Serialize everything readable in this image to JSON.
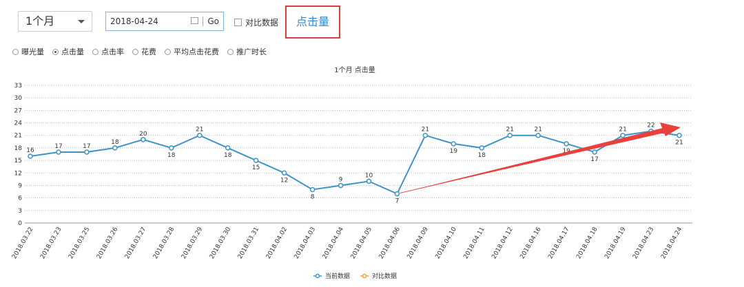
{
  "controls": {
    "period": "1个月",
    "date": "2018-04-24",
    "go": "Go",
    "compare": "对比数据",
    "metric": "点击量",
    "metrics": [
      "曝光量",
      "点击量",
      "点击率",
      "花费",
      "平均点击花费",
      "推广时长"
    ],
    "selected_metric": 1
  },
  "chart_data": {
    "type": "line",
    "title": "1个月  点击量",
    "categories": [
      "2018.03.22",
      "2018.03.23",
      "2018.03.25",
      "2018.03.26",
      "2018.03.27",
      "2018.03.28",
      "2018.03.29",
      "2018.03.30",
      "2018.03.31",
      "2018.04.02",
      "2018.04.03",
      "2018.04.04",
      "2018.04.05",
      "2018.04.06",
      "2018.04.09",
      "2018.04.10",
      "2018.04.11",
      "2018.04.12",
      "2018.04.16",
      "2018.04.17",
      "2018.04.18",
      "2018.04.19",
      "2018.04.23",
      "2018.04.24"
    ],
    "series": [
      {
        "name": "当前数据",
        "color": "#3a94c9",
        "values": [
          16,
          17,
          17,
          18,
          20,
          18,
          21,
          18,
          15,
          12,
          8,
          9,
          10,
          7,
          21,
          19,
          18,
          21,
          21,
          19,
          17,
          21,
          22,
          21
        ]
      }
    ],
    "comparison_series": {
      "name": "对比数据",
      "color": "#f0a030"
    },
    "ylim": [
      0,
      33
    ],
    "yticks": [
      0,
      3,
      6,
      9,
      12,
      15,
      18,
      21,
      24,
      27,
      30,
      33
    ],
    "grid": true
  }
}
